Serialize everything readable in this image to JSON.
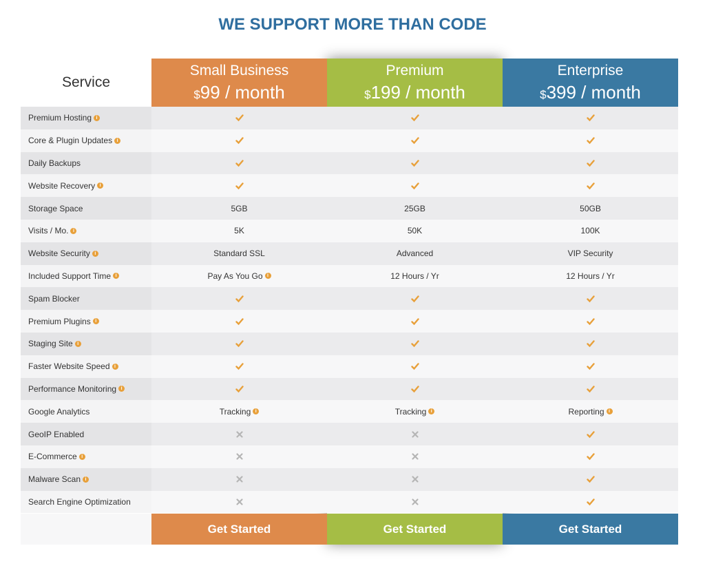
{
  "title": "WE SUPPORT MORE THAN CODE",
  "service_header": "Service",
  "plans": [
    {
      "name": "Small Business",
      "currency": "$",
      "price": "99 / month",
      "color": "#de8a4b",
      "button": "Get Started"
    },
    {
      "name": "Premium",
      "currency": "$",
      "price": "199 / month",
      "color": "#a5bd45",
      "button": "Get Started"
    },
    {
      "name": "Enterprise",
      "currency": "$",
      "price": "399 / month",
      "color": "#3a79a2",
      "button": "Get Started"
    }
  ],
  "rows": [
    {
      "feature": "Premium Hosting",
      "info": true,
      "cells": [
        true,
        true,
        true
      ]
    },
    {
      "feature": "Core & Plugin Updates",
      "info": true,
      "cells": [
        true,
        true,
        true
      ]
    },
    {
      "feature": "Daily Backups",
      "info": false,
      "cells": [
        true,
        true,
        true
      ]
    },
    {
      "feature": "Website Recovery",
      "info": true,
      "cells": [
        true,
        true,
        true
      ]
    },
    {
      "feature": "Storage Space",
      "info": false,
      "cells": [
        {
          "text": "5GB",
          "info": false
        },
        {
          "text": "25GB",
          "info": false
        },
        {
          "text": "50GB",
          "info": false
        }
      ]
    },
    {
      "feature": "Visits / Mo.",
      "info": true,
      "cells": [
        {
          "text": "5K",
          "info": false
        },
        {
          "text": "50K",
          "info": false
        },
        {
          "text": "100K",
          "info": false
        }
      ]
    },
    {
      "feature": "Website Security",
      "info": true,
      "cells": [
        {
          "text": "Standard SSL",
          "info": false
        },
        {
          "text": "Advanced",
          "info": false
        },
        {
          "text": "VIP Security",
          "info": false
        }
      ]
    },
    {
      "feature": "Included Support Time",
      "info": true,
      "cells": [
        {
          "text": "Pay As You Go",
          "info": true
        },
        {
          "text": "12 Hours / Yr",
          "info": false
        },
        {
          "text": "12 Hours / Yr",
          "info": false
        }
      ]
    },
    {
      "feature": "Spam Blocker",
      "info": false,
      "cells": [
        true,
        true,
        true
      ]
    },
    {
      "feature": "Premium Plugins",
      "info": true,
      "cells": [
        true,
        true,
        true
      ]
    },
    {
      "feature": "Staging Site",
      "info": true,
      "cells": [
        true,
        true,
        true
      ]
    },
    {
      "feature": "Faster Website Speed",
      "info": true,
      "cells": [
        true,
        true,
        true
      ]
    },
    {
      "feature": "Performance Monitoring",
      "info": true,
      "cells": [
        true,
        true,
        true
      ]
    },
    {
      "feature": "Google Analytics",
      "info": false,
      "cells": [
        {
          "text": "Tracking",
          "info": true
        },
        {
          "text": "Tracking",
          "info": true
        },
        {
          "text": "Reporting",
          "info": true
        }
      ]
    },
    {
      "feature": "GeoIP Enabled",
      "info": false,
      "cells": [
        false,
        false,
        true
      ]
    },
    {
      "feature": "E-Commerce",
      "info": true,
      "cells": [
        false,
        false,
        true
      ]
    },
    {
      "feature": "Malware Scan",
      "info": true,
      "cells": [
        false,
        false,
        true
      ]
    },
    {
      "feature": "Search Engine Optimization",
      "info": false,
      "cells": [
        false,
        false,
        true
      ]
    }
  ]
}
